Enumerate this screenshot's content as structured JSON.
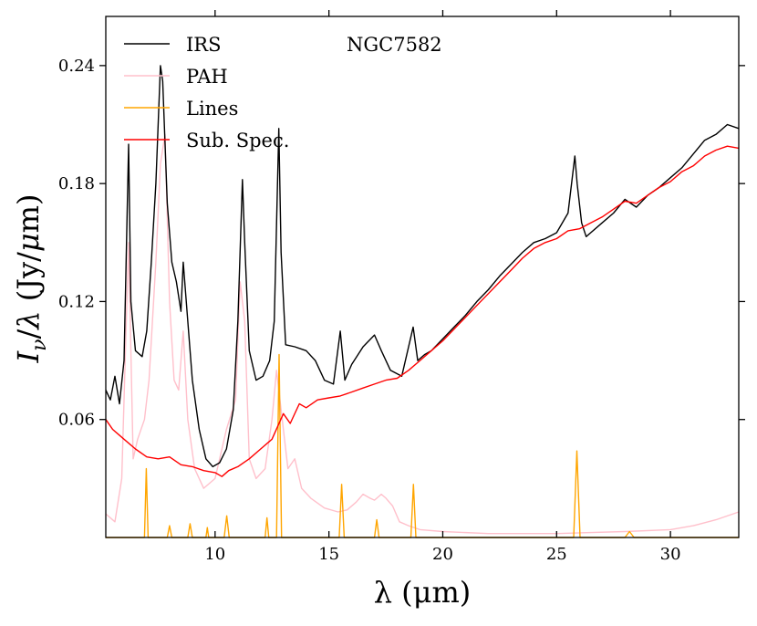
{
  "chart_data": {
    "type": "line",
    "title": "",
    "annotation": "NGC7582",
    "xlabel": "λ (μm)",
    "ylabel": "I_ν/λ (Jy/μm)",
    "xlim": [
      5.2,
      33.0
    ],
    "ylim": [
      0.0,
      0.265
    ],
    "xticks": [
      10,
      15,
      20,
      25,
      30
    ],
    "xtick_labels": [
      "10",
      "15",
      "20",
      "25",
      "30"
    ],
    "yticks": [
      0.06,
      0.12,
      0.18,
      0.24
    ],
    "ytick_labels": [
      "0.06",
      "0.12",
      "0.18",
      "0.24"
    ],
    "legend_position": "top-left",
    "colors": {
      "IRS": "#000000",
      "PAH": "#ffc0cb",
      "Lines": "#ffa500",
      "Sub. Spec.": "#ff0000"
    },
    "series": [
      {
        "name": "IRS",
        "x": [
          5.2,
          5.4,
          5.6,
          5.8,
          6.0,
          6.2,
          6.3,
          6.5,
          6.8,
          7.0,
          7.2,
          7.4,
          7.6,
          7.7,
          7.9,
          8.1,
          8.3,
          8.5,
          8.6,
          8.8,
          9.0,
          9.3,
          9.6,
          9.9,
          10.2,
          10.5,
          10.8,
          11.0,
          11.2,
          11.3,
          11.5,
          11.8,
          12.1,
          12.4,
          12.6,
          12.8,
          12.9,
          13.1,
          13.5,
          14.0,
          14.4,
          14.8,
          15.2,
          15.5,
          15.7,
          16.0,
          16.5,
          17.0,
          17.3,
          17.7,
          18.2,
          18.6,
          18.7,
          18.9,
          19.2,
          19.5,
          20.0,
          20.5,
          21.0,
          21.5,
          22.0,
          22.5,
          23.0,
          23.5,
          24.0,
          24.5,
          25.0,
          25.5,
          25.8,
          25.9,
          26.1,
          26.3,
          26.5,
          27.0,
          27.5,
          28.0,
          28.5,
          29.0,
          29.5,
          30.0,
          30.5,
          31.0,
          31.5,
          32.0,
          32.5,
          33.0
        ],
        "y": [
          0.075,
          0.07,
          0.082,
          0.068,
          0.09,
          0.2,
          0.12,
          0.095,
          0.092,
          0.105,
          0.14,
          0.18,
          0.24,
          0.232,
          0.17,
          0.14,
          0.13,
          0.115,
          0.14,
          0.11,
          0.08,
          0.055,
          0.04,
          0.036,
          0.038,
          0.045,
          0.065,
          0.11,
          0.182,
          0.15,
          0.095,
          0.08,
          0.082,
          0.09,
          0.11,
          0.208,
          0.145,
          0.098,
          0.097,
          0.095,
          0.09,
          0.08,
          0.078,
          0.105,
          0.08,
          0.088,
          0.097,
          0.103,
          0.095,
          0.085,
          0.082,
          0.102,
          0.107,
          0.09,
          0.093,
          0.095,
          0.101,
          0.107,
          0.113,
          0.12,
          0.126,
          0.133,
          0.139,
          0.145,
          0.15,
          0.152,
          0.155,
          0.165,
          0.194,
          0.18,
          0.16,
          0.153,
          0.155,
          0.16,
          0.165,
          0.172,
          0.168,
          0.174,
          0.178,
          0.183,
          0.188,
          0.195,
          0.202,
          0.205,
          0.21,
          0.208
        ]
      },
      {
        "name": "PAH",
        "x": [
          5.2,
          5.6,
          5.9,
          6.2,
          6.4,
          6.6,
          6.9,
          7.1,
          7.4,
          7.6,
          7.8,
          8.0,
          8.2,
          8.4,
          8.6,
          8.8,
          9.1,
          9.5,
          10.0,
          10.5,
          10.9,
          11.1,
          11.3,
          11.5,
          11.8,
          12.2,
          12.5,
          12.7,
          12.9,
          13.2,
          13.5,
          13.8,
          14.2,
          14.8,
          15.4,
          15.8,
          16.2,
          16.5,
          16.8,
          17.0,
          17.3,
          17.5,
          17.8,
          18.1,
          18.5,
          19.0,
          20.0,
          22.0,
          25.0,
          28.0,
          30.0,
          31.0,
          32.0,
          33.0
        ],
        "y": [
          0.012,
          0.008,
          0.03,
          0.15,
          0.04,
          0.05,
          0.06,
          0.08,
          0.14,
          0.19,
          0.205,
          0.12,
          0.08,
          0.075,
          0.105,
          0.06,
          0.035,
          0.025,
          0.03,
          0.055,
          0.07,
          0.13,
          0.11,
          0.04,
          0.03,
          0.035,
          0.06,
          0.085,
          0.065,
          0.035,
          0.04,
          0.025,
          0.02,
          0.015,
          0.013,
          0.014,
          0.018,
          0.022,
          0.02,
          0.019,
          0.022,
          0.02,
          0.016,
          0.008,
          0.006,
          0.004,
          0.003,
          0.002,
          0.002,
          0.003,
          0.004,
          0.006,
          0.009,
          0.013
        ]
      },
      {
        "name": "Lines",
        "x": [
          5.2,
          6.9,
          6.98,
          7.06,
          7.9,
          8.0,
          8.1,
          8.8,
          8.9,
          9.0,
          9.6,
          9.66,
          9.72,
          10.4,
          10.51,
          10.62,
          12.2,
          12.28,
          12.36,
          12.7,
          12.81,
          12.92,
          15.45,
          15.56,
          15.67,
          17.0,
          17.1,
          17.2,
          18.6,
          18.71,
          18.82,
          25.75,
          25.89,
          26.03,
          28.0,
          28.2,
          28.4,
          33.0
        ],
        "y": [
          0.0,
          0.0,
          0.035,
          0.0,
          0.0,
          0.006,
          0.0,
          0.0,
          0.007,
          0.0,
          0.0,
          0.005,
          0.0,
          0.0,
          0.011,
          0.0,
          0.0,
          0.01,
          0.0,
          0.0,
          0.093,
          0.0,
          0.0,
          0.027,
          0.0,
          0.0,
          0.009,
          0.0,
          0.0,
          0.027,
          0.0,
          0.0,
          0.044,
          0.0,
          0.0,
          0.003,
          0.0,
          0.0
        ]
      },
      {
        "name": "Sub. Spec.",
        "x": [
          5.2,
          5.5,
          6.0,
          6.5,
          7.0,
          7.5,
          8.0,
          8.5,
          9.0,
          9.5,
          10.0,
          10.3,
          10.6,
          11.0,
          11.5,
          12.0,
          12.5,
          13.0,
          13.3,
          13.7,
          14.0,
          14.5,
          15.0,
          15.5,
          16.0,
          16.5,
          17.0,
          17.5,
          18.0,
          18.5,
          19.0,
          19.5,
          20.0,
          20.5,
          21.0,
          21.5,
          22.0,
          22.5,
          23.0,
          23.5,
          24.0,
          24.5,
          25.0,
          25.5,
          26.0,
          26.5,
          27.0,
          27.5,
          28.0,
          28.5,
          29.0,
          29.5,
          30.0,
          30.5,
          31.0,
          31.5,
          32.0,
          32.5,
          33.0
        ],
        "y": [
          0.06,
          0.055,
          0.05,
          0.045,
          0.041,
          0.04,
          0.041,
          0.037,
          0.036,
          0.034,
          0.033,
          0.031,
          0.034,
          0.036,
          0.04,
          0.045,
          0.05,
          0.063,
          0.058,
          0.068,
          0.066,
          0.07,
          0.071,
          0.072,
          0.074,
          0.076,
          0.078,
          0.08,
          0.081,
          0.085,
          0.09,
          0.095,
          0.1,
          0.106,
          0.112,
          0.118,
          0.124,
          0.13,
          0.136,
          0.142,
          0.147,
          0.15,
          0.152,
          0.156,
          0.157,
          0.16,
          0.163,
          0.167,
          0.171,
          0.17,
          0.174,
          0.178,
          0.181,
          0.186,
          0.189,
          0.194,
          0.197,
          0.199,
          0.198
        ]
      }
    ]
  }
}
